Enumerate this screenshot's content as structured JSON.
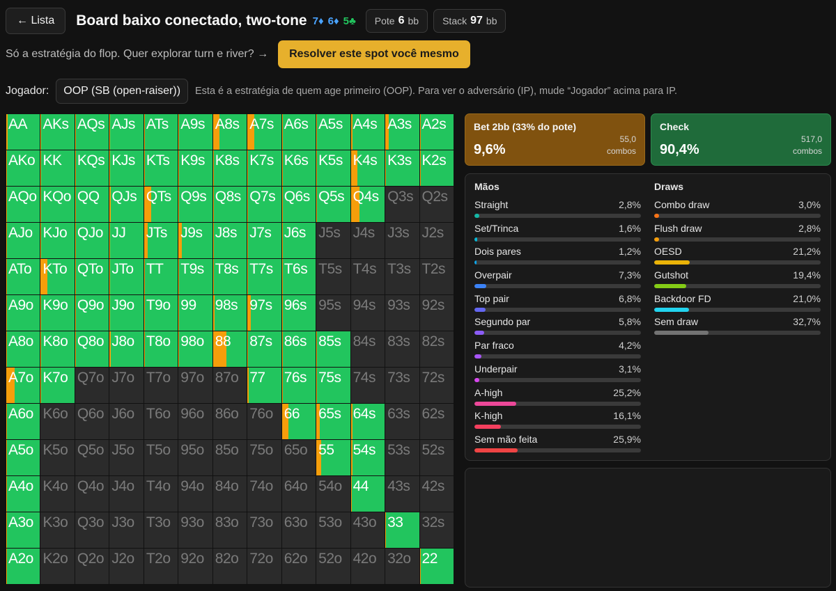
{
  "header": {
    "back_label": "← Lista",
    "title": "Board baixo conectado, two-tone",
    "board": [
      {
        "rank": "7",
        "suit": "♦",
        "color": "#4aa3ff"
      },
      {
        "rank": "6",
        "suit": "♦",
        "color": "#4aa3ff"
      },
      {
        "rank": "5",
        "suit": "♣",
        "color": "#22c55e"
      }
    ],
    "pot_label": "Pote",
    "pot_value": "6",
    "pot_unit": "bb",
    "stack_label": "Stack",
    "stack_value": "97",
    "stack_unit": "bb"
  },
  "promo": {
    "text": "Só a estratégia do flop. Quer explorar turn e river? →",
    "button_label": "Resolver este spot você mesmo"
  },
  "player": {
    "label": "Jogador:",
    "selected": "OOP (SB (open-raiser))",
    "hint": "Esta é a estratégia de quem age primeiro (OOP). Para ver o adversário (IP), mude “Jogador” acima para IP."
  },
  "colors": {
    "bet": "#f59e0b",
    "check": "#22c55e",
    "empty": "#2b2b2b"
  },
  "matrix": {
    "labels": [
      [
        "AA",
        "AKs",
        "AQs",
        "AJs",
        "ATs",
        "A9s",
        "A8s",
        "A7s",
        "A6s",
        "A5s",
        "A4s",
        "A3s",
        "A2s"
      ],
      [
        "AKo",
        "KK",
        "KQs",
        "KJs",
        "KTs",
        "K9s",
        "K8s",
        "K7s",
        "K6s",
        "K5s",
        "K4s",
        "K3s",
        "K2s"
      ],
      [
        "AQo",
        "KQo",
        "QQ",
        "QJs",
        "QTs",
        "Q9s",
        "Q8s",
        "Q7s",
        "Q6s",
        "Q5s",
        "Q4s",
        "Q3s",
        "Q2s"
      ],
      [
        "AJo",
        "KJo",
        "QJo",
        "JJ",
        "JTs",
        "J9s",
        "J8s",
        "J7s",
        "J6s",
        "J5s",
        "J4s",
        "J3s",
        "J2s"
      ],
      [
        "ATo",
        "KTo",
        "QTo",
        "JTo",
        "TT",
        "T9s",
        "T8s",
        "T7s",
        "T6s",
        "T5s",
        "T4s",
        "T3s",
        "T2s"
      ],
      [
        "A9o",
        "K9o",
        "Q9o",
        "J9o",
        "T9o",
        "99",
        "98s",
        "97s",
        "96s",
        "95s",
        "94s",
        "93s",
        "92s"
      ],
      [
        "A8o",
        "K8o",
        "Q8o",
        "J8o",
        "T8o",
        "98o",
        "88",
        "87s",
        "86s",
        "85s",
        "84s",
        "83s",
        "82s"
      ],
      [
        "A7o",
        "K7o",
        "Q7o",
        "J7o",
        "T7o",
        "97o",
        "87o",
        "77",
        "76s",
        "75s",
        "74s",
        "73s",
        "72s"
      ],
      [
        "A6o",
        "K6o",
        "Q6o",
        "J6o",
        "T6o",
        "96o",
        "86o",
        "76o",
        "66",
        "65s",
        "64s",
        "63s",
        "62s"
      ],
      [
        "A5o",
        "K5o",
        "Q5o",
        "J5o",
        "T5o",
        "95o",
        "85o",
        "75o",
        "65o",
        "55",
        "54s",
        "53s",
        "52s"
      ],
      [
        "A4o",
        "K4o",
        "Q4o",
        "J4o",
        "T4o",
        "94o",
        "84o",
        "74o",
        "64o",
        "54o",
        "44",
        "43s",
        "42s"
      ],
      [
        "A3o",
        "K3o",
        "Q3o",
        "J3o",
        "T3o",
        "93o",
        "83o",
        "73o",
        "63o",
        "53o",
        "43o",
        "33",
        "32s"
      ],
      [
        "A2o",
        "K2o",
        "Q2o",
        "J2o",
        "T2o",
        "92o",
        "82o",
        "72o",
        "62o",
        "52o",
        "42o",
        "32o",
        "22"
      ]
    ],
    "bet_fraction": [
      [
        0.04,
        0.02,
        0.02,
        0.02,
        0.03,
        0.01,
        0.2,
        0.2,
        0.02,
        0.02,
        0.04,
        0.1,
        0.04
      ],
      [
        0.02,
        0.02,
        0.02,
        0.02,
        0.02,
        0.01,
        0.02,
        0.02,
        0.03,
        0.01,
        0.2,
        0.02,
        0.01
      ],
      [
        0.03,
        0.02,
        0.02,
        0.03,
        0.2,
        0.02,
        0.02,
        0.02,
        0.02,
        0.02,
        0.25,
        0,
        0
      ],
      [
        0.02,
        0.02,
        0.02,
        0.02,
        0.1,
        0.1,
        0.02,
        0.01,
        0.02,
        0,
        0,
        0,
        0
      ],
      [
        0.02,
        0.2,
        0.02,
        0.02,
        0.02,
        0.02,
        0.02,
        0.01,
        0.02,
        0,
        0,
        0,
        0
      ],
      [
        0.03,
        0.02,
        0.02,
        0.02,
        0.02,
        0.02,
        0.04,
        0.1,
        0.02,
        0,
        0,
        0,
        0
      ],
      [
        0.02,
        0.02,
        0.02,
        0.04,
        0.03,
        0.02,
        0.4,
        0.02,
        0.02,
        0.02,
        0,
        0,
        0
      ],
      [
        0.25,
        0.02,
        0,
        0,
        0,
        0,
        0,
        0.04,
        0.03,
        0.02,
        0,
        0,
        0
      ],
      [
        0.02,
        0,
        0,
        0,
        0,
        0,
        0,
        0,
        0.2,
        0.1,
        0.04,
        0,
        0
      ],
      [
        0.02,
        0,
        0,
        0,
        0,
        0,
        0,
        0,
        0,
        0.14,
        0.04,
        0,
        0
      ],
      [
        0.02,
        0,
        0,
        0,
        0,
        0,
        0,
        0,
        0,
        0,
        0.02,
        0,
        0
      ],
      [
        0.02,
        0,
        0,
        0,
        0,
        0,
        0,
        0,
        0,
        0,
        0.06,
        0.02,
        0
      ],
      [
        0.02,
        0,
        0,
        0,
        0,
        0,
        0,
        0,
        0,
        0,
        0,
        0,
        0.02
      ]
    ],
    "played": [
      [
        1,
        1,
        1,
        1,
        1,
        1,
        1,
        1,
        1,
        1,
        1,
        1,
        1
      ],
      [
        1,
        1,
        1,
        1,
        1,
        1,
        1,
        1,
        1,
        1,
        1,
        1,
        1
      ],
      [
        1,
        1,
        1,
        1,
        1,
        1,
        1,
        1,
        1,
        1,
        1,
        0,
        0
      ],
      [
        1,
        1,
        1,
        1,
        1,
        1,
        1,
        1,
        1,
        0,
        0,
        0,
        0
      ],
      [
        1,
        1,
        1,
        1,
        1,
        1,
        1,
        1,
        1,
        0,
        0,
        0,
        0
      ],
      [
        1,
        1,
        1,
        1,
        1,
        1,
        1,
        1,
        1,
        0,
        0,
        0,
        0
      ],
      [
        1,
        1,
        1,
        1,
        1,
        1,
        1,
        1,
        1,
        1,
        0,
        0,
        0
      ],
      [
        1,
        1,
        0,
        0,
        0,
        0,
        0,
        1,
        1,
        1,
        0,
        0,
        0
      ],
      [
        1,
        0,
        0,
        0,
        0,
        0,
        0,
        0,
        1,
        1,
        1,
        0,
        0
      ],
      [
        1,
        0,
        0,
        0,
        0,
        0,
        0,
        0,
        0,
        1,
        1,
        0,
        0
      ],
      [
        1,
        0,
        0,
        0,
        0,
        0,
        0,
        0,
        0,
        0,
        1,
        0,
        0
      ],
      [
        1,
        0,
        0,
        0,
        0,
        0,
        0,
        0,
        0,
        0,
        0,
        1,
        0
      ],
      [
        1,
        0,
        0,
        0,
        0,
        0,
        0,
        0,
        0,
        0,
        0,
        0,
        1
      ]
    ]
  },
  "actions": [
    {
      "name": "Bet 2bb (33% do pote)",
      "pct": "9,6%",
      "combos": "55,0",
      "combos_label": "combos"
    },
    {
      "name": "Check",
      "pct": "90,4%",
      "combos": "517,0",
      "combos_label": "combos"
    }
  ],
  "stats": {
    "hands_title": "Mãos",
    "draws_title": "Draws",
    "hands": [
      {
        "label": "Straight",
        "value": "2,8%",
        "pct": 2.8,
        "color": "#14b8a6"
      },
      {
        "label": "Set/Trinca",
        "value": "1,6%",
        "pct": 1.6,
        "color": "#06b6d4"
      },
      {
        "label": "Dois pares",
        "value": "1,2%",
        "pct": 1.2,
        "color": "#0ea5e9"
      },
      {
        "label": "Overpair",
        "value": "7,3%",
        "pct": 7.3,
        "color": "#3b82f6"
      },
      {
        "label": "Top pair",
        "value": "6,8%",
        "pct": 6.8,
        "color": "#6366f1"
      },
      {
        "label": "Segundo par",
        "value": "5,8%",
        "pct": 5.8,
        "color": "#8b5cf6"
      },
      {
        "label": "Par fraco",
        "value": "4,2%",
        "pct": 4.2,
        "color": "#a855f7"
      },
      {
        "label": "Underpair",
        "value": "3,1%",
        "pct": 3.1,
        "color": "#d946ef"
      },
      {
        "label": "A-high",
        "value": "25,2%",
        "pct": 25.2,
        "color": "#ec4899"
      },
      {
        "label": "K-high",
        "value": "16,1%",
        "pct": 16.1,
        "color": "#f43f5e"
      },
      {
        "label": "Sem mão feita",
        "value": "25,9%",
        "pct": 25.9,
        "color": "#ef4444"
      }
    ],
    "draws": [
      {
        "label": "Combo draw",
        "value": "3,0%",
        "pct": 3.0,
        "color": "#f97316"
      },
      {
        "label": "Flush draw",
        "value": "2,8%",
        "pct": 2.8,
        "color": "#f59e0b"
      },
      {
        "label": "OESD",
        "value": "21,2%",
        "pct": 21.2,
        "color": "#eab308"
      },
      {
        "label": "Gutshot",
        "value": "19,4%",
        "pct": 19.4,
        "color": "#84cc16"
      },
      {
        "label": "Backdoor FD",
        "value": "21,0%",
        "pct": 21.0,
        "color": "#22d3ee"
      },
      {
        "label": "Sem draw",
        "value": "32,7%",
        "pct": 32.7,
        "color": "#737373"
      }
    ]
  }
}
